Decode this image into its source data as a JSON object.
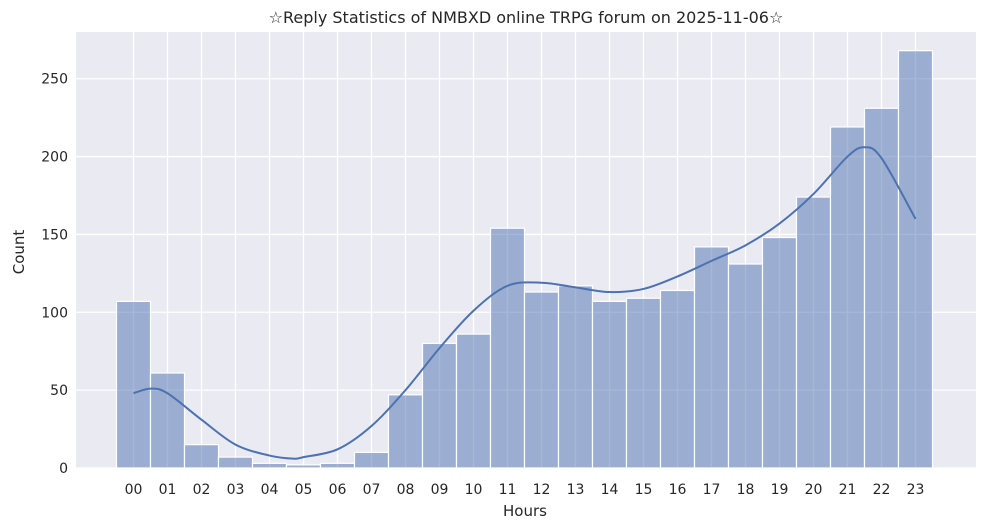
{
  "chart_data": {
    "type": "bar",
    "title": "☆Reply Statistics of NMBXD online TRPG forum on 2025-11-06☆",
    "xlabel": "Hours",
    "ylabel": "Count",
    "categories": [
      "00",
      "01",
      "02",
      "03",
      "04",
      "05",
      "06",
      "07",
      "08",
      "09",
      "10",
      "11",
      "12",
      "13",
      "14",
      "15",
      "16",
      "17",
      "18",
      "19",
      "20",
      "21",
      "22",
      "23"
    ],
    "values": [
      107,
      61,
      15,
      7,
      3,
      2,
      3,
      10,
      47,
      80,
      86,
      154,
      113,
      117,
      107,
      109,
      114,
      142,
      131,
      148,
      174,
      219,
      231,
      268
    ],
    "kde_curve": {
      "x": [
        0,
        0.5,
        1,
        2,
        3,
        4,
        4.7,
        5,
        6,
        7,
        8,
        9,
        10,
        11,
        12,
        13,
        14,
        15,
        16,
        17,
        18,
        19,
        20,
        21,
        21.5,
        22,
        23
      ],
      "y": [
        48,
        51,
        48,
        31,
        15,
        8,
        6,
        7,
        12,
        27,
        50,
        77,
        101,
        117,
        119,
        116,
        113,
        115,
        123,
        133,
        143,
        157,
        176,
        200,
        206,
        199,
        160
      ]
    },
    "ylim": [
      0,
      280
    ],
    "yticks": [
      0,
      50,
      100,
      150,
      200,
      250
    ],
    "grid": true,
    "colors": {
      "bar": "#4c72b0",
      "background": "#eaeaf2",
      "grid": "#ffffff"
    }
  }
}
